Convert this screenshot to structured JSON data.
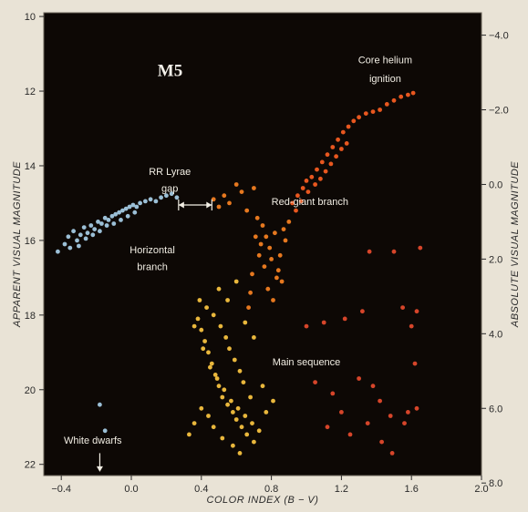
{
  "chart_data": {
    "type": "scatter",
    "title": "M5",
    "xlabel": "COLOR INDEX (B − V)",
    "ylabel": "APPARENT VISUAL MAGNITUDE",
    "ylabel_right": "ABSOLUTE VISUAL MAGNITUDE",
    "xlim": [
      -0.5,
      2.0
    ],
    "ylim": [
      22.3,
      9.9
    ],
    "y_inverted": true,
    "xticks": [
      -0.4,
      0.0,
      0.4,
      0.8,
      1.2,
      1.6,
      2.0
    ],
    "xtick_labels": [
      "−0.4",
      "0.0",
      "0.4",
      "0.8",
      "1.2",
      "1.6",
      "2.0"
    ],
    "yticks_left": [
      10,
      12,
      14,
      16,
      18,
      20,
      22
    ],
    "yticks_left_labels": [
      "10",
      "12",
      "14",
      "16",
      "18",
      "20",
      "22"
    ],
    "yticks_right_apparent": [
      10.5,
      12.5,
      14.5,
      16.5,
      18.5,
      20.5,
      22.5
    ],
    "yticks_right_labels": [
      "−4.0",
      "−2.0",
      "0.0",
      "2.0",
      "4.0",
      "6.0",
      "8.0"
    ],
    "grid": false,
    "annotations": [
      {
        "text": "Core helium",
        "x": 1.45,
        "y": 11.25
      },
      {
        "text": "ignition",
        "x": 1.45,
        "y": 11.75
      },
      {
        "text": "RR Lyrae",
        "x": 0.22,
        "y": 14.25
      },
      {
        "text": "gap",
        "x": 0.22,
        "y": 14.7
      },
      {
        "text": "Red-giant branch",
        "x": 1.02,
        "y": 15.05
      },
      {
        "text": "Horizontal",
        "x": 0.12,
        "y": 16.35
      },
      {
        "text": "branch",
        "x": 0.12,
        "y": 16.8
      },
      {
        "text": "Main sequence",
        "x": 1.0,
        "y": 19.35
      },
      {
        "text": "White dwarfs",
        "x": -0.22,
        "y": 21.45
      }
    ],
    "colors": {
      "background": "#0d0805",
      "frame": "#e9e3d6",
      "horizontal_branch_blue": "#9bbfd6",
      "main_sequence_yellow": "#e9b73c",
      "red_giant_orange": "#e6781f",
      "red_stars": "#d6452a"
    },
    "series": [
      {
        "points": [
          [
            -0.42,
            16.3
          ],
          [
            -0.38,
            16.1
          ],
          [
            -0.36,
            15.9
          ],
          [
            -0.33,
            15.75
          ],
          [
            -0.31,
            16.0
          ],
          [
            -0.29,
            15.85
          ],
          [
            -0.27,
            15.65
          ],
          [
            -0.25,
            15.8
          ],
          [
            -0.23,
            15.6
          ],
          [
            -0.21,
            15.7
          ],
          [
            -0.19,
            15.5
          ],
          [
            -0.17,
            15.55
          ],
          [
            -0.15,
            15.4
          ],
          [
            -0.13,
            15.45
          ],
          [
            -0.11,
            15.35
          ],
          [
            -0.09,
            15.3
          ],
          [
            -0.07,
            15.25
          ],
          [
            -0.05,
            15.2
          ],
          [
            -0.03,
            15.15
          ],
          [
            -0.01,
            15.1
          ],
          [
            0.01,
            15.05
          ],
          [
            0.03,
            15.1
          ],
          [
            0.05,
            15.0
          ],
          [
            0.08,
            14.95
          ],
          [
            0.11,
            14.9
          ],
          [
            0.14,
            14.95
          ],
          [
            0.17,
            14.85
          ],
          [
            0.2,
            14.8
          ],
          [
            0.23,
            14.75
          ],
          [
            0.26,
            14.85
          ],
          [
            -0.35,
            16.2
          ],
          [
            -0.3,
            16.15
          ],
          [
            -0.26,
            15.95
          ],
          [
            -0.22,
            15.85
          ],
          [
            -0.18,
            15.75
          ],
          [
            -0.14,
            15.6
          ],
          [
            -0.1,
            15.55
          ],
          [
            -0.06,
            15.45
          ],
          [
            -0.02,
            15.35
          ],
          [
            0.02,
            15.25
          ]
        ],
        "color": "#9bbfd6"
      },
      {
        "points": [
          [
            0.47,
            14.9
          ],
          [
            0.5,
            15.1
          ],
          [
            0.53,
            14.8
          ],
          [
            0.56,
            15.0
          ],
          [
            0.6,
            14.5
          ],
          [
            0.63,
            14.7
          ],
          [
            0.66,
            15.2
          ],
          [
            0.7,
            14.6
          ],
          [
            0.72,
            15.4
          ],
          [
            0.75,
            15.6
          ],
          [
            0.77,
            15.9
          ],
          [
            0.79,
            16.2
          ],
          [
            0.8,
            16.5
          ],
          [
            0.82,
            15.8
          ],
          [
            0.84,
            16.8
          ],
          [
            0.86,
            17.1
          ],
          [
            0.88,
            16.0
          ],
          [
            0.9,
            15.5
          ],
          [
            0.74,
            16.1
          ],
          [
            0.76,
            16.7
          ],
          [
            0.78,
            17.3
          ],
          [
            0.81,
            17.6
          ],
          [
            0.83,
            17.0
          ],
          [
            0.85,
            16.4
          ],
          [
            0.87,
            15.7
          ],
          [
            0.71,
            15.9
          ],
          [
            0.73,
            16.4
          ],
          [
            0.69,
            16.9
          ],
          [
            0.68,
            17.4
          ],
          [
            0.67,
            17.8
          ]
        ],
        "color": "#e6781f"
      },
      {
        "points": [
          [
            0.92,
            15.0
          ],
          [
            0.95,
            14.8
          ],
          [
            0.98,
            14.6
          ],
          [
            1.0,
            14.4
          ],
          [
            1.03,
            14.3
          ],
          [
            1.06,
            14.1
          ],
          [
            1.09,
            13.9
          ],
          [
            1.12,
            13.7
          ],
          [
            1.15,
            13.5
          ],
          [
            1.18,
            13.3
          ],
          [
            1.21,
            13.1
          ],
          [
            1.24,
            12.95
          ],
          [
            1.27,
            12.8
          ],
          [
            1.3,
            12.7
          ],
          [
            1.34,
            12.6
          ],
          [
            1.38,
            12.55
          ],
          [
            1.42,
            12.5
          ],
          [
            1.46,
            12.35
          ],
          [
            1.5,
            12.25
          ],
          [
            1.54,
            12.15
          ],
          [
            1.58,
            12.1
          ],
          [
            1.61,
            12.05
          ],
          [
            0.94,
            15.2
          ],
          [
            0.97,
            14.95
          ],
          [
            1.01,
            14.7
          ],
          [
            1.05,
            14.5
          ],
          [
            1.08,
            14.35
          ],
          [
            1.11,
            14.15
          ],
          [
            1.14,
            13.95
          ],
          [
            1.17,
            13.75
          ],
          [
            1.2,
            13.55
          ],
          [
            1.23,
            13.4
          ]
        ],
        "color": "#e8571f"
      },
      {
        "points": [
          [
            0.38,
            18.1
          ],
          [
            0.4,
            18.4
          ],
          [
            0.42,
            18.7
          ],
          [
            0.44,
            19.0
          ],
          [
            0.46,
            19.3
          ],
          [
            0.48,
            19.6
          ],
          [
            0.5,
            19.9
          ],
          [
            0.52,
            20.2
          ],
          [
            0.55,
            20.4
          ],
          [
            0.58,
            20.6
          ],
          [
            0.6,
            20.8
          ],
          [
            0.63,
            21.0
          ],
          [
            0.66,
            21.2
          ],
          [
            0.7,
            21.4
          ],
          [
            0.36,
            18.3
          ],
          [
            0.41,
            18.9
          ],
          [
            0.45,
            19.4
          ],
          [
            0.49,
            19.7
          ],
          [
            0.53,
            20.0
          ],
          [
            0.57,
            20.3
          ],
          [
            0.61,
            20.5
          ],
          [
            0.65,
            20.7
          ],
          [
            0.69,
            20.9
          ],
          [
            0.73,
            21.1
          ],
          [
            0.77,
            20.6
          ],
          [
            0.81,
            20.3
          ],
          [
            0.62,
            19.5
          ],
          [
            0.59,
            19.2
          ],
          [
            0.56,
            18.9
          ],
          [
            0.54,
            18.6
          ],
          [
            0.51,
            18.3
          ],
          [
            0.47,
            18.0
          ],
          [
            0.43,
            17.8
          ],
          [
            0.39,
            17.6
          ],
          [
            0.5,
            17.3
          ],
          [
            0.55,
            17.6
          ],
          [
            0.6,
            17.1
          ],
          [
            0.65,
            18.2
          ],
          [
            0.7,
            18.6
          ],
          [
            0.75,
            19.9
          ],
          [
            0.68,
            20.2
          ],
          [
            0.64,
            19.8
          ],
          [
            0.58,
            21.5
          ],
          [
            0.62,
            21.7
          ],
          [
            0.52,
            21.3
          ],
          [
            0.47,
            21.0
          ],
          [
            0.44,
            20.7
          ],
          [
            0.4,
            20.5
          ],
          [
            0.36,
            20.9
          ],
          [
            0.33,
            21.2
          ]
        ],
        "color": "#e9b73c"
      },
      {
        "points": [
          [
            1.0,
            18.3
          ],
          [
            1.1,
            18.2
          ],
          [
            1.22,
            18.1
          ],
          [
            1.32,
            17.9
          ],
          [
            1.36,
            16.3
          ],
          [
            1.5,
            16.3
          ],
          [
            1.55,
            17.8
          ],
          [
            1.6,
            18.3
          ],
          [
            1.63,
            17.9
          ],
          [
            1.65,
            16.2
          ],
          [
            1.05,
            19.8
          ],
          [
            1.15,
            20.1
          ],
          [
            1.3,
            19.7
          ],
          [
            1.38,
            19.9
          ],
          [
            1.42,
            20.3
          ],
          [
            1.48,
            20.7
          ],
          [
            1.56,
            20.9
          ],
          [
            1.63,
            20.5
          ],
          [
            1.12,
            21.0
          ],
          [
            1.2,
            20.6
          ],
          [
            1.25,
            21.2
          ],
          [
            1.35,
            20.9
          ],
          [
            1.43,
            21.4
          ],
          [
            1.49,
            21.7
          ],
          [
            1.58,
            20.6
          ],
          [
            1.62,
            19.3
          ]
        ],
        "color": "#d6452a"
      },
      {
        "points": [
          [
            -0.18,
            20.4
          ],
          [
            -0.15,
            21.1
          ]
        ],
        "color": "#9bbfd6"
      }
    ]
  }
}
